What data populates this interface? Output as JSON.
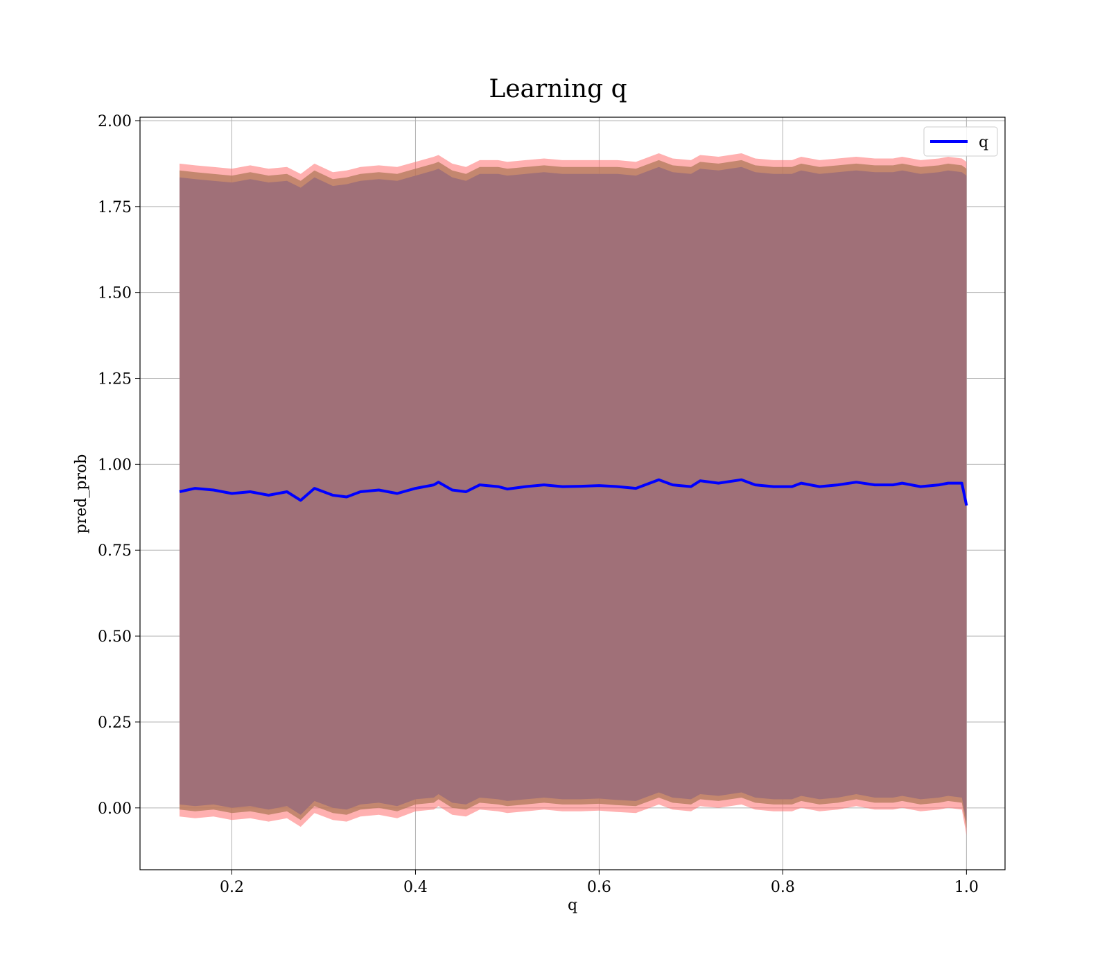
{
  "chart_data": {
    "type": "area",
    "title": "Learning q",
    "xlabel": "q",
    "ylabel": "pred_prob",
    "xlim": [
      0.1,
      1.042
    ],
    "ylim": [
      -0.18,
      2.01
    ],
    "xticks": [
      0.2,
      0.4,
      0.6,
      0.8,
      1.0
    ],
    "xtick_labels": [
      "0.2",
      "0.4",
      "0.6",
      "0.8",
      "1.0"
    ],
    "yticks": [
      0.0,
      0.25,
      0.5,
      0.75,
      1.0,
      1.25,
      1.5,
      1.75,
      2.0
    ],
    "ytick_labels": [
      "0.00",
      "0.25",
      "0.50",
      "0.75",
      "1.00",
      "1.25",
      "1.50",
      "1.75",
      "2.00"
    ],
    "grid": true,
    "legend_position": "top-right",
    "x": [
      0.143,
      0.16,
      0.18,
      0.2,
      0.22,
      0.24,
      0.26,
      0.275,
      0.29,
      0.31,
      0.325,
      0.34,
      0.36,
      0.38,
      0.4,
      0.42,
      0.425,
      0.44,
      0.455,
      0.47,
      0.49,
      0.5,
      0.52,
      0.54,
      0.56,
      0.58,
      0.6,
      0.62,
      0.64,
      0.665,
      0.68,
      0.7,
      0.71,
      0.73,
      0.755,
      0.77,
      0.79,
      0.81,
      0.82,
      0.84,
      0.86,
      0.88,
      0.9,
      0.92,
      0.93,
      0.95,
      0.97,
      0.98,
      0.995,
      1.0
    ],
    "series": [
      {
        "name": "q",
        "color": "#0000ff",
        "values": [
          0.92,
          0.93,
          0.925,
          0.915,
          0.92,
          0.91,
          0.92,
          0.895,
          0.93,
          0.91,
          0.905,
          0.92,
          0.925,
          0.915,
          0.93,
          0.94,
          0.948,
          0.925,
          0.92,
          0.94,
          0.935,
          0.928,
          0.935,
          0.94,
          0.935,
          0.936,
          0.938,
          0.935,
          0.93,
          0.955,
          0.94,
          0.935,
          0.952,
          0.945,
          0.955,
          0.94,
          0.935,
          0.935,
          0.945,
          0.935,
          0.94,
          0.948,
          0.94,
          0.94,
          0.945,
          0.935,
          0.94,
          0.945,
          0.945,
          0.88
        ]
      }
    ],
    "bands": [
      {
        "color": "#ff7070",
        "opacity": 0.55,
        "upper": [
          1.875,
          1.87,
          1.865,
          1.86,
          1.87,
          1.86,
          1.865,
          1.845,
          1.875,
          1.85,
          1.855,
          1.865,
          1.87,
          1.865,
          1.88,
          1.895,
          1.9,
          1.875,
          1.865,
          1.885,
          1.885,
          1.88,
          1.885,
          1.89,
          1.885,
          1.885,
          1.885,
          1.885,
          1.88,
          1.905,
          1.89,
          1.885,
          1.9,
          1.895,
          1.905,
          1.89,
          1.885,
          1.885,
          1.895,
          1.885,
          1.89,
          1.895,
          1.89,
          1.89,
          1.895,
          1.885,
          1.89,
          1.895,
          1.89,
          1.88
        ],
        "lower": [
          -0.025,
          -0.03,
          -0.025,
          -0.035,
          -0.03,
          -0.04,
          -0.03,
          -0.055,
          -0.015,
          -0.035,
          -0.04,
          -0.025,
          -0.02,
          -0.03,
          -0.01,
          -0.005,
          0.005,
          -0.02,
          -0.025,
          -0.005,
          -0.01,
          -0.015,
          -0.01,
          -0.005,
          -0.01,
          -0.01,
          -0.008,
          -0.012,
          -0.015,
          0.01,
          -0.005,
          -0.01,
          0.005,
          0.0,
          0.01,
          -0.005,
          -0.01,
          -0.01,
          0.0,
          -0.01,
          -0.005,
          0.005,
          -0.005,
          -0.005,
          0.0,
          -0.01,
          -0.005,
          0.0,
          -0.005,
          -0.08
        ]
      },
      {
        "color": "#b07a5a",
        "opacity": 0.75,
        "upper": [
          1.855,
          1.85,
          1.845,
          1.84,
          1.85,
          1.84,
          1.845,
          1.825,
          1.855,
          1.83,
          1.835,
          1.845,
          1.85,
          1.845,
          1.86,
          1.875,
          1.88,
          1.855,
          1.845,
          1.865,
          1.865,
          1.86,
          1.865,
          1.87,
          1.865,
          1.865,
          1.865,
          1.865,
          1.86,
          1.885,
          1.87,
          1.865,
          1.88,
          1.875,
          1.885,
          1.87,
          1.865,
          1.865,
          1.875,
          1.865,
          1.87,
          1.875,
          1.87,
          1.87,
          1.875,
          1.865,
          1.87,
          1.875,
          1.87,
          1.86
        ],
        "lower": [
          -0.005,
          -0.01,
          -0.005,
          -0.015,
          -0.01,
          -0.02,
          -0.01,
          -0.035,
          0.005,
          -0.015,
          -0.02,
          -0.005,
          0.0,
          -0.01,
          0.01,
          0.015,
          0.025,
          0.0,
          -0.005,
          0.015,
          0.01,
          0.005,
          0.01,
          0.015,
          0.01,
          0.01,
          0.012,
          0.008,
          0.005,
          0.03,
          0.015,
          0.01,
          0.025,
          0.02,
          0.03,
          0.015,
          0.01,
          0.01,
          0.02,
          0.01,
          0.015,
          0.025,
          0.015,
          0.015,
          0.02,
          0.01,
          0.015,
          0.02,
          0.015,
          -0.06
        ]
      },
      {
        "color": "#a07078",
        "opacity": 1.0,
        "upper": [
          1.835,
          1.83,
          1.825,
          1.82,
          1.83,
          1.82,
          1.825,
          1.805,
          1.835,
          1.81,
          1.815,
          1.825,
          1.83,
          1.825,
          1.84,
          1.855,
          1.86,
          1.835,
          1.825,
          1.845,
          1.845,
          1.84,
          1.845,
          1.85,
          1.845,
          1.845,
          1.845,
          1.845,
          1.84,
          1.865,
          1.85,
          1.845,
          1.86,
          1.855,
          1.865,
          1.85,
          1.845,
          1.845,
          1.855,
          1.845,
          1.85,
          1.855,
          1.85,
          1.85,
          1.855,
          1.845,
          1.85,
          1.855,
          1.85,
          1.84
        ],
        "lower": [
          0.01,
          0.005,
          0.01,
          0.0,
          0.005,
          -0.005,
          0.005,
          -0.02,
          0.02,
          0.0,
          -0.005,
          0.01,
          0.015,
          0.005,
          0.025,
          0.03,
          0.04,
          0.015,
          0.01,
          0.03,
          0.025,
          0.02,
          0.025,
          0.03,
          0.025,
          0.025,
          0.027,
          0.023,
          0.02,
          0.045,
          0.03,
          0.025,
          0.04,
          0.035,
          0.045,
          0.03,
          0.025,
          0.025,
          0.035,
          0.025,
          0.03,
          0.04,
          0.03,
          0.03,
          0.035,
          0.025,
          0.03,
          0.035,
          0.03,
          -0.04
        ]
      }
    ]
  }
}
